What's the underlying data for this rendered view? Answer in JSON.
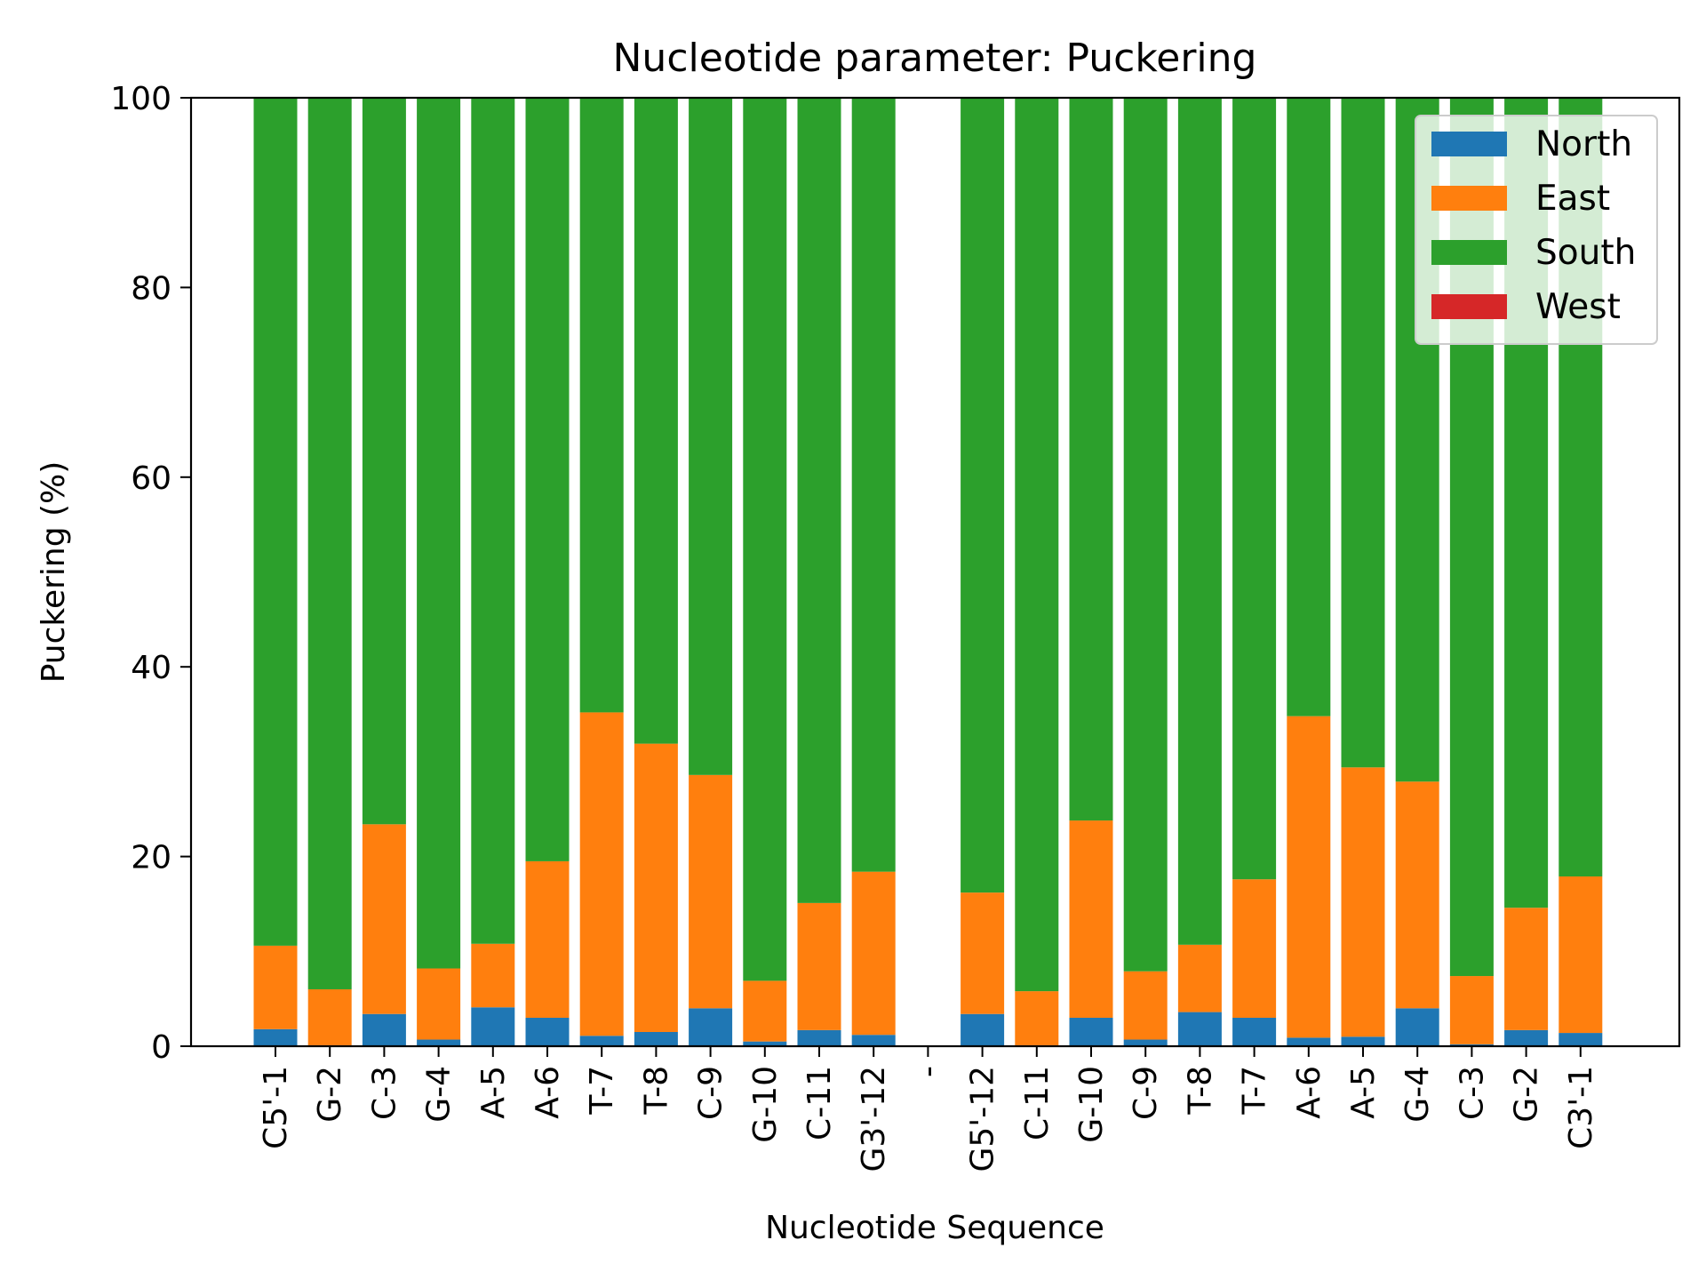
{
  "chart_data": {
    "type": "bar",
    "stacked": true,
    "title": "Nucleotide parameter: Puckering",
    "xlabel": "Nucleotide Sequence",
    "ylabel": "Puckering (%)",
    "ylim": [
      0,
      100
    ],
    "yticks": [
      0,
      20,
      40,
      60,
      80,
      100
    ],
    "grid": false,
    "legend_position": "top-right",
    "categories": [
      "C5'-1",
      "G-2",
      "C-3",
      "G-4",
      "A-5",
      "A-6",
      "T-7",
      "T-8",
      "C-9",
      "G-10",
      "C-11",
      "G3'-12",
      "-",
      "G5'-12",
      "C-11",
      "G-10",
      "C-9",
      "T-8",
      "T-7",
      "A-6",
      "A-5",
      "G-4",
      "C-3",
      "G-2",
      "C3'-1"
    ],
    "series": [
      {
        "name": "North",
        "color": "#1f77b4",
        "values": [
          1.8,
          0.1,
          3.4,
          0.7,
          4.1,
          3.0,
          1.1,
          1.5,
          4.0,
          0.5,
          1.7,
          1.2,
          0,
          3.4,
          0.1,
          3.0,
          0.7,
          3.6,
          3.0,
          0.9,
          1.0,
          4.0,
          0.2,
          1.7,
          1.4
        ]
      },
      {
        "name": "East",
        "color": "#ff7f0e",
        "values": [
          8.8,
          5.9,
          20.0,
          7.5,
          6.7,
          16.5,
          34.1,
          30.4,
          24.6,
          6.4,
          13.4,
          17.2,
          0,
          12.8,
          5.7,
          20.8,
          7.2,
          7.1,
          14.6,
          33.9,
          28.4,
          23.9,
          7.2,
          12.9,
          16.5
        ]
      },
      {
        "name": "South",
        "color": "#2ca02c",
        "values": [
          89.4,
          94.0,
          76.6,
          91.8,
          89.2,
          80.5,
          64.8,
          68.1,
          71.4,
          93.1,
          84.9,
          81.6,
          0,
          83.8,
          94.2,
          76.2,
          92.1,
          89.3,
          82.4,
          65.2,
          70.6,
          72.1,
          92.6,
          85.4,
          82.1
        ]
      },
      {
        "name": "West",
        "color": "#d62728",
        "values": [
          0,
          0,
          0,
          0,
          0,
          0,
          0,
          0,
          0,
          0,
          0,
          0,
          0,
          0,
          0,
          0,
          0,
          0,
          0,
          0,
          0,
          0,
          0,
          0,
          0
        ]
      }
    ]
  }
}
